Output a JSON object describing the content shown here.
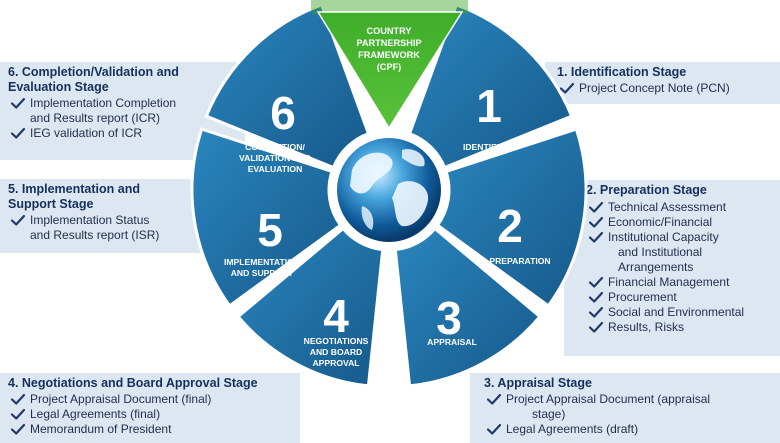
{
  "center": {
    "lines": [
      "COUNTRY",
      "PARTNERSHIP",
      "FRAMEWORK",
      "(CPF)"
    ]
  },
  "stages": [
    {
      "number": "1",
      "label": [
        "IDENTIFICATION"
      ]
    },
    {
      "number": "2",
      "label": [
        "PREPARATION"
      ]
    },
    {
      "number": "3",
      "label": [
        "APPRAISAL"
      ]
    },
    {
      "number": "4",
      "label": [
        "NEGOTIATIONS",
        "AND BOARD",
        "APPROVAL"
      ]
    },
    {
      "number": "5",
      "label": [
        "IMPLEMENTATION",
        "AND SUPPORT"
      ]
    },
    {
      "number": "6",
      "label": [
        "COMPLETION/",
        "VALIDATION AND",
        "EVALUATION"
      ]
    }
  ],
  "panels": {
    "identification": {
      "title": "1. Identification Stage",
      "items": [
        "Project Concept Note (PCN)"
      ]
    },
    "preparation": {
      "title": "2. Preparation Stage",
      "items": [
        "Technical Assessment",
        "Economic/Financial",
        "Institutional Capacity",
        "Financial Management",
        "Procurement",
        "Social and Environmental",
        "Results, Risks"
      ],
      "continuation": [
        "and Institutional",
        "Arrangements"
      ]
    },
    "appraisal": {
      "title": "3. Appraisal Stage",
      "items": [
        "Project Appraisal Document (appraisal",
        "Legal Agreements (draft)"
      ],
      "continuation": [
        "stage)"
      ]
    },
    "negotiations": {
      "title": "4. Negotiations and Board Approval Stage",
      "items": [
        "Project Appraisal Document (final)",
        "Legal Agreements (final)",
        "Memorandum of President"
      ]
    },
    "implementation": {
      "title_lines": [
        "5. Implementation and",
        "Support Stage"
      ],
      "items": [
        "Implementation Status",
        "and Results report (ISR)"
      ]
    },
    "completion": {
      "title_lines": [
        "6. Completion/Validation and",
        "Evaluation Stage"
      ],
      "items": [
        "Implementation Completion",
        "and Results report (ICR)",
        "IEG validation of ICR"
      ]
    }
  },
  "colors": {
    "panel_bg": "#dde7f1",
    "segment": "#1f6fa3",
    "segment_edge": "#ffffff",
    "arrow": "#3fae2a",
    "title": "#14305c"
  }
}
